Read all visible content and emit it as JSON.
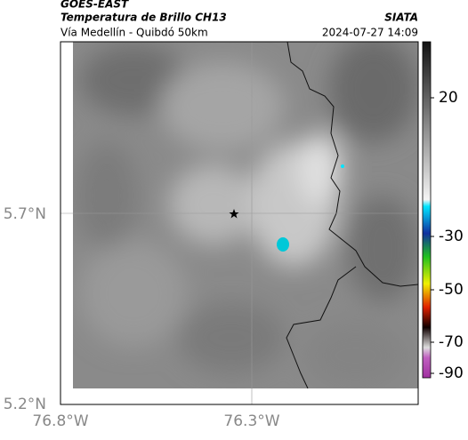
{
  "header": {
    "source": "GOES-EAST",
    "title": "Temperatura de Brillo CH13",
    "subtitle": "Vía Medellín - Quibdó 50km",
    "brand": "SIATA",
    "timestamp": "2024-07-27 14:09"
  },
  "map": {
    "lat_labels": [
      "5.7°N",
      "5.2°N"
    ],
    "lon_labels": [
      "76.8°W",
      "76.3°W"
    ]
  },
  "colorbar": {
    "ticks": [
      20,
      -30,
      -50,
      -70,
      -90
    ]
  }
}
